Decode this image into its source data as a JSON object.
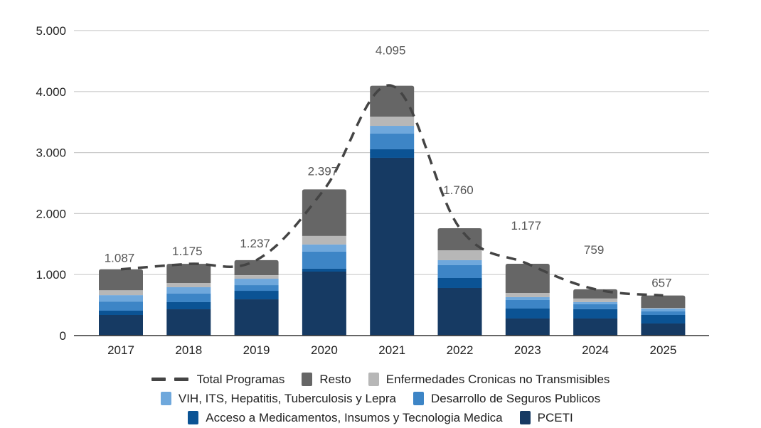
{
  "chart_data": {
    "type": "bar",
    "stacked": true,
    "title": "",
    "xlabel": "",
    "ylabel": "",
    "ylim": [
      0,
      5000
    ],
    "yticks": [
      0,
      1000,
      2000,
      3000,
      4000,
      5000
    ],
    "ytick_labels": [
      "0",
      "1.000",
      "2.000",
      "3.000",
      "4.000",
      "5.000"
    ],
    "grid": true,
    "legend_position": "bottom",
    "categories": [
      "2017",
      "2018",
      "2019",
      "2020",
      "2021",
      "2022",
      "2023",
      "2024",
      "2025"
    ],
    "series": [
      {
        "name": "PCETI",
        "color": "#163a63",
        "values": [
          338,
          431,
          594,
          1049,
          2914,
          781,
          280,
          280,
          198
        ]
      },
      {
        "name": "Acceso a Medicamentos, Insumos y Tecnologia Medica",
        "color": "#0b5394",
        "values": [
          70,
          117,
          140,
          47,
          140,
          163,
          163,
          152,
          140
        ]
      },
      {
        "name": "Desarrollo de Seguros Publicos",
        "color": "#3d85c6",
        "values": [
          150,
          140,
          93,
          280,
          256,
          210,
          140,
          82,
          58
        ]
      },
      {
        "name": "VIH, ITS, Hepatitis, Tuberculosis y Lepra",
        "color": "#6fa8dc",
        "values": [
          105,
          105,
          105,
          117,
          128,
          82,
          47,
          35,
          47
        ]
      },
      {
        "name": "Enfermedades Cronicas no Transmisibles",
        "color": "#b7b7b7",
        "values": [
          80,
          70,
          58,
          140,
          152,
          163,
          70,
          58,
          12
        ]
      },
      {
        "name": "Resto",
        "color": "#666666",
        "values": [
          344,
          312,
          247,
          764,
          505,
          361,
          477,
          152,
          202
        ]
      }
    ],
    "line_series": {
      "name": "Total Programas",
      "color": "#444444",
      "style": "dashed",
      "values": [
        1087,
        1175,
        1237,
        2397,
        4095,
        1760,
        1177,
        759,
        657
      ],
      "labels": [
        "1.087",
        "1.175",
        "1.237",
        "2.397",
        "4.095",
        "1.760",
        "1.177",
        "759",
        "657"
      ]
    }
  },
  "legend": {
    "rows": [
      [
        {
          "type": "line",
          "label": "Total Programas",
          "color": "#444444"
        },
        {
          "type": "box",
          "label": "Resto",
          "color": "#666666"
        },
        {
          "type": "box",
          "label": "Enfermedades Cronicas no Transmisibles",
          "color": "#b7b7b7"
        }
      ],
      [
        {
          "type": "box",
          "label": "VIH, ITS, Hepatitis, Tuberculosis y Lepra",
          "color": "#6fa8dc"
        },
        {
          "type": "box",
          "label": "Desarrollo de Seguros Publicos",
          "color": "#3d85c6"
        }
      ],
      [
        {
          "type": "box",
          "label": "Acceso a Medicamentos, Insumos y Tecnologia Medica",
          "color": "#0b5394"
        },
        {
          "type": "box",
          "label": "PCETI",
          "color": "#163a63"
        }
      ]
    ]
  }
}
